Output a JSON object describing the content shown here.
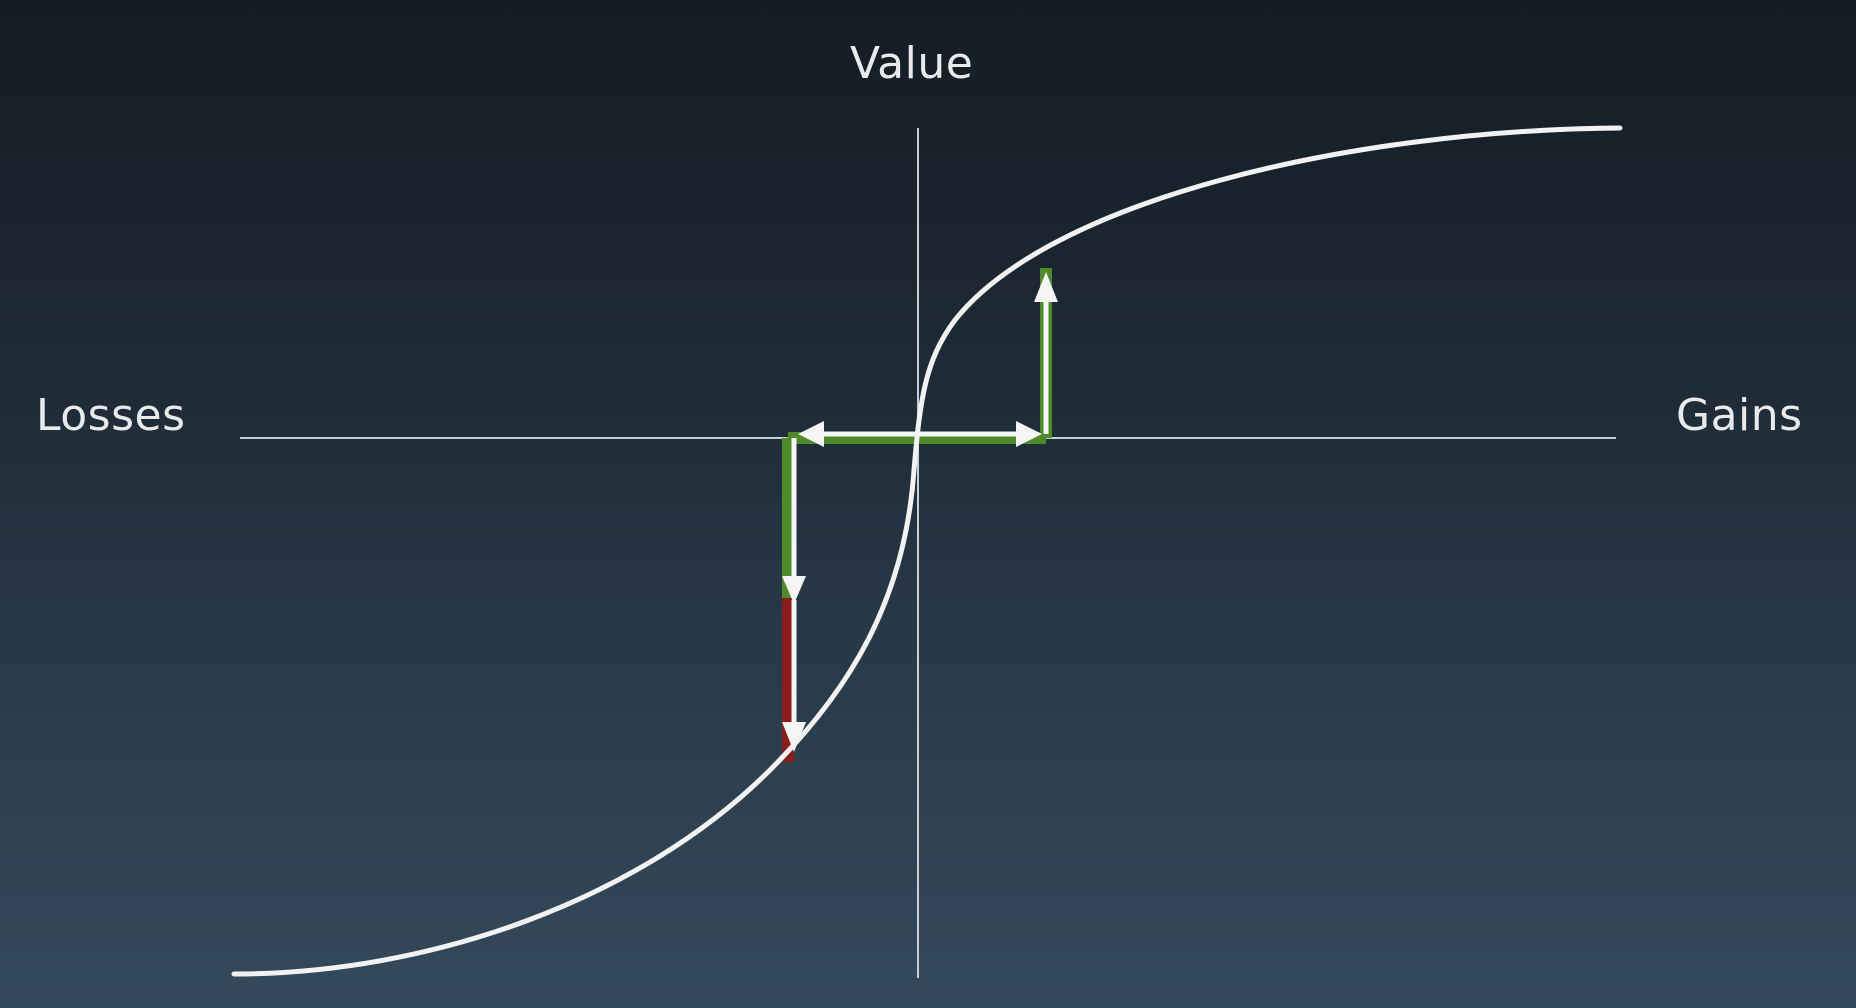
{
  "labels": {
    "y_axis": "Value",
    "x_left": "Losses",
    "x_right": "Gains"
  },
  "colors": {
    "curve": "#f2f2f2",
    "axis": "#c9ced3",
    "arrow": "#f5f5f5",
    "gain_segment": "#4f8a2a",
    "loss_excess_segment": "#8b1c1c"
  },
  "icons": {
    "arrow_head": "triangle-arrowhead"
  }
}
